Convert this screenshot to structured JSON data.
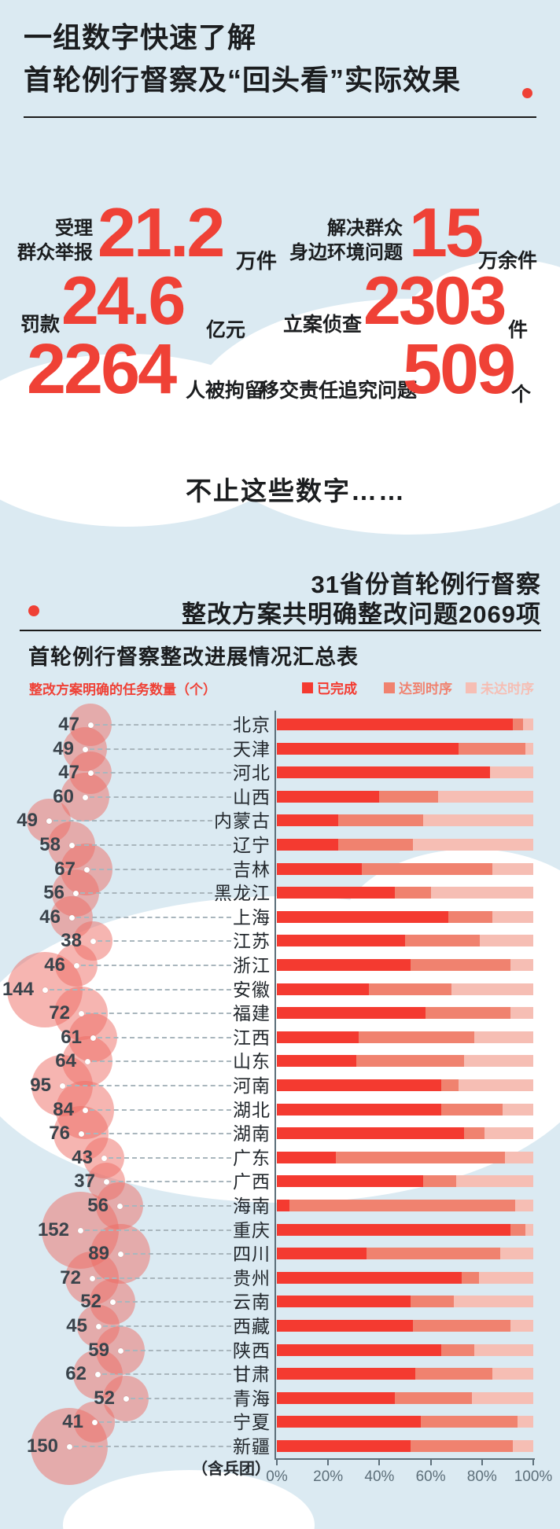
{
  "colors": {
    "background": "#dbeaf2",
    "accent_red": "#ef4136",
    "bar_completed": "#f43a30",
    "bar_on_schedule": "#f0826f",
    "bar_behind": "#f6beb4",
    "bubble_pink": "rgba(237,108,100,0.5)",
    "axis_gray": "#5d6f7a"
  },
  "header": {
    "title_line1": "一组数字快速了解",
    "title_line2": "首轮例行督察及“回头看”实际效果"
  },
  "stats": {
    "s1_label1": "受理",
    "s1_label2": "群众举报",
    "s1_value": "21.2",
    "s1_unit": "万件",
    "s2_label1": "解决群众",
    "s2_label2": "身边环境问题",
    "s2_value": "15",
    "s2_unit": "万余件",
    "s3_label": "罚款",
    "s3_value": "24.6",
    "s3_unit": "亿元",
    "s4_label": "立案侦查",
    "s4_value": "2303",
    "s4_unit": "件",
    "s5_value": "2264",
    "s5_label": "人被拘留",
    "s6_label": "移交责任追究问题",
    "s6_value": "509",
    "s6_unit": "个"
  },
  "interlude": "不止这些数字……",
  "section2": {
    "title_line1": "31省份首轮例行督察",
    "title_line2": "整改方案共明确整改问题2069项"
  },
  "chart": {
    "title": "首轮例行督察整改进展情况汇总表",
    "bubble_axis_label": "整改方案明确的任务数量（个）",
    "footnote": "（含兵团）"
  },
  "chart_data": {
    "type": "bar",
    "orientation": "horizontal-stacked",
    "x_ticks": [
      "0%",
      "20%",
      "40%",
      "60%",
      "80%",
      "100%"
    ],
    "xlim": [
      0,
      100
    ],
    "legend": [
      "已完成",
      "达到时序",
      "未达时序"
    ],
    "legend_position": "top-right",
    "bubble_metric": "整改方案明确的任务数量（个）",
    "rows": [
      {
        "province": "北京",
        "tasks": 47,
        "completed": 92,
        "on_schedule": 4,
        "behind": 4
      },
      {
        "province": "天津",
        "tasks": 49,
        "completed": 71,
        "on_schedule": 26,
        "behind": 3
      },
      {
        "province": "河北",
        "tasks": 47,
        "completed": 83,
        "on_schedule": 0,
        "behind": 17
      },
      {
        "province": "山西",
        "tasks": 60,
        "completed": 40,
        "on_schedule": 23,
        "behind": 37
      },
      {
        "province": "内蒙古",
        "tasks": 49,
        "completed": 24,
        "on_schedule": 33,
        "behind": 43
      },
      {
        "province": "辽宁",
        "tasks": 58,
        "completed": 24,
        "on_schedule": 29,
        "behind": 47
      },
      {
        "province": "吉林",
        "tasks": 67,
        "completed": 33,
        "on_schedule": 51,
        "behind": 16
      },
      {
        "province": "黑龙江",
        "tasks": 56,
        "completed": 46,
        "on_schedule": 14,
        "behind": 40
      },
      {
        "province": "上海",
        "tasks": 46,
        "completed": 67,
        "on_schedule": 17,
        "behind": 16
      },
      {
        "province": "江苏",
        "tasks": 38,
        "completed": 50,
        "on_schedule": 29,
        "behind": 21
      },
      {
        "province": "浙江",
        "tasks": 46,
        "completed": 52,
        "on_schedule": 39,
        "behind": 9
      },
      {
        "province": "安徽",
        "tasks": 144,
        "completed": 36,
        "on_schedule": 32,
        "behind": 32
      },
      {
        "province": "福建",
        "tasks": 72,
        "completed": 58,
        "on_schedule": 33,
        "behind": 9
      },
      {
        "province": "江西",
        "tasks": 61,
        "completed": 32,
        "on_schedule": 45,
        "behind": 23
      },
      {
        "province": "山东",
        "tasks": 64,
        "completed": 31,
        "on_schedule": 42,
        "behind": 27
      },
      {
        "province": "河南",
        "tasks": 95,
        "completed": 64,
        "on_schedule": 7,
        "behind": 29
      },
      {
        "province": "湖北",
        "tasks": 84,
        "completed": 64,
        "on_schedule": 24,
        "behind": 12
      },
      {
        "province": "湖南",
        "tasks": 76,
        "completed": 73,
        "on_schedule": 8,
        "behind": 19
      },
      {
        "province": "广东",
        "tasks": 43,
        "completed": 23,
        "on_schedule": 66,
        "behind": 11
      },
      {
        "province": "广西",
        "tasks": 37,
        "completed": 57,
        "on_schedule": 13,
        "behind": 30
      },
      {
        "province": "海南",
        "tasks": 56,
        "completed": 5,
        "on_schedule": 88,
        "behind": 7
      },
      {
        "province": "重庆",
        "tasks": 152,
        "completed": 91,
        "on_schedule": 6,
        "behind": 3
      },
      {
        "province": "四川",
        "tasks": 89,
        "completed": 35,
        "on_schedule": 52,
        "behind": 13
      },
      {
        "province": "贵州",
        "tasks": 72,
        "completed": 72,
        "on_schedule": 7,
        "behind": 21
      },
      {
        "province": "云南",
        "tasks": 52,
        "completed": 52,
        "on_schedule": 17,
        "behind": 31
      },
      {
        "province": "西藏",
        "tasks": 45,
        "completed": 53,
        "on_schedule": 38,
        "behind": 9
      },
      {
        "province": "陕西",
        "tasks": 59,
        "completed": 64,
        "on_schedule": 13,
        "behind": 23
      },
      {
        "province": "甘肃",
        "tasks": 62,
        "completed": 54,
        "on_schedule": 30,
        "behind": 16
      },
      {
        "province": "青海",
        "tasks": 52,
        "completed": 46,
        "on_schedule": 30,
        "behind": 24
      },
      {
        "province": "宁夏",
        "tasks": 41,
        "completed": 56,
        "on_schedule": 38,
        "behind": 6
      },
      {
        "province": "新疆",
        "tasks": 150,
        "completed": 52,
        "on_schedule": 40,
        "behind": 8
      }
    ]
  }
}
